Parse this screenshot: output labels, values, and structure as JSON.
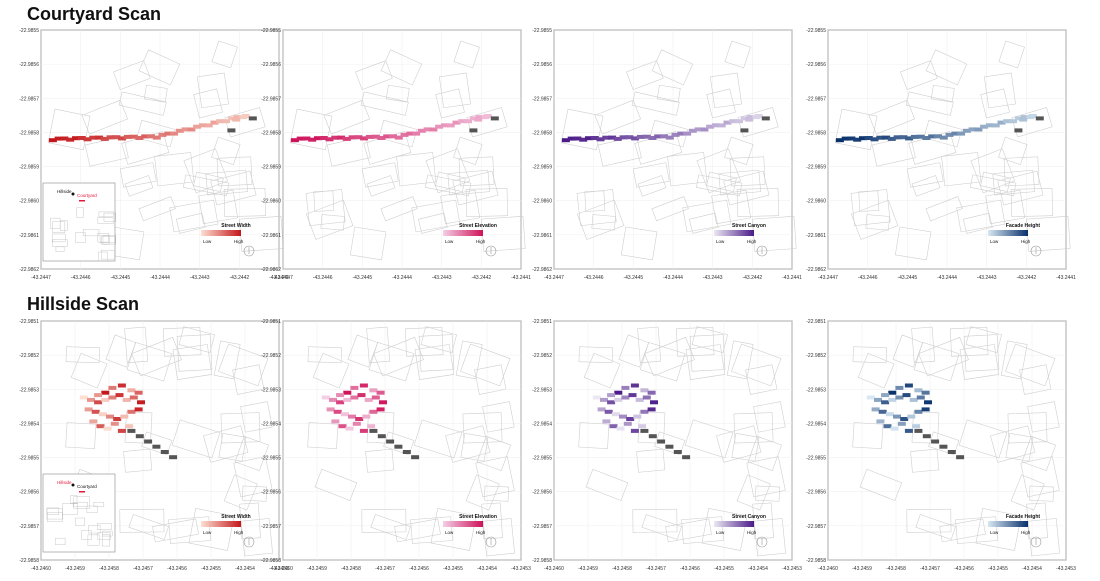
{
  "rows": [
    {
      "title": "Courtyard Scan",
      "lat_ticks": [
        "-22.9855",
        "-22.9856",
        "-22.9857",
        "-22.9858",
        "-22.9859",
        "-22.9860",
        "-22.9861",
        "-22.9862"
      ],
      "lon_ticks": [
        "-43.2447",
        "-43.2446",
        "-43.2445",
        "-43.2444",
        "-43.2443",
        "-43.2442",
        "-43.2441"
      ],
      "inset": {
        "label_a": "Hillside",
        "label_b": "Courtyard",
        "highlight": "Courtyard"
      }
    },
    {
      "title": "Hillside Scan",
      "lat_ticks": [
        "-22.9851",
        "-22.9852",
        "-22.9853",
        "-22.9854",
        "-22.9855",
        "-22.9856",
        "-22.9857",
        "-22.9858"
      ],
      "lon_ticks": [
        "-43.2460",
        "-43.2459",
        "-43.2458",
        "-43.2457",
        "-43.2456",
        "-43.2455",
        "-43.2454",
        "-43.2453"
      ],
      "inset": {
        "label_a": "Hillside",
        "label_b": "Courtyard",
        "highlight": "Hillside"
      }
    }
  ],
  "metrics": [
    {
      "name": "Street Width",
      "low": "#fde0d2",
      "high": "#c3161b"
    },
    {
      "name": "Street Elevation",
      "low": "#f4cfe6",
      "high": "#ce1259"
    },
    {
      "name": "Street Canyon",
      "low": "#ebe8f3",
      "high": "#4a1a87"
    },
    {
      "name": "Facade Height",
      "low": "#d8e8f2",
      "high": "#08306b"
    }
  ],
  "legend": {
    "low_label": "Low",
    "high_label": "High"
  },
  "colors": {
    "no_data": "#555555",
    "inset_highlight": "#e8173a"
  }
}
